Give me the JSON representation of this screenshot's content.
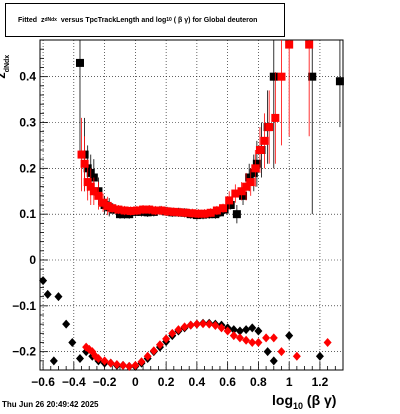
{
  "title": {
    "prefix": "Fitted",
    "z_base": "z",
    "z_sub": "dNdx",
    "middle": "versus TpcTrackLength and log",
    "log_sub": "10",
    "suffix": "( β γ) for Global deuteron"
  },
  "footer_text": "Thu Jun 26 20:49:42 2025",
  "axes": {
    "xlabel_base": "log",
    "xlabel_sub": "10",
    "xlabel_suffix": "(β γ)",
    "ylabel_base": "z",
    "ylabel_sub": "dNdx"
  },
  "colors": {
    "series1": "#000000",
    "series2": "#ff0000",
    "grid": "#000000",
    "background": "#ffffff"
  },
  "chart_data": {
    "type": "scatter",
    "xlim": [
      -0.62,
      1.35
    ],
    "ylim": [
      -0.24,
      0.48
    ],
    "grid": true,
    "x_ticks": [
      -0.6,
      -0.4,
      -0.2,
      0,
      0.2,
      0.4,
      0.6,
      0.8,
      1,
      1.2
    ],
    "x_tick_labels": [
      "−0.6",
      "−0.4",
      "−0.2",
      "0",
      "0.2",
      "0.4",
      "0.6",
      "0.8",
      "1",
      "1.2"
    ],
    "y_ticks": [
      -0.2,
      -0.1,
      0,
      0.1,
      0.2,
      0.3,
      0.4
    ],
    "y_tick_labels": [
      "−0.2",
      "−0.1",
      "0",
      "0.1",
      "0.2",
      "0.3",
      "0.4"
    ],
    "series": [
      {
        "marker": "square",
        "color": "#000000",
        "points": [
          [
            -0.36,
            0.43
          ],
          [
            -0.33,
            0.23
          ],
          [
            -0.31,
            0.2
          ],
          [
            -0.29,
            0.19
          ],
          [
            -0.27,
            0.18
          ],
          [
            -0.24,
            0.15
          ],
          [
            -0.2,
            0.12
          ],
          [
            -0.17,
            0.115
          ],
          [
            -0.14,
            0.11
          ],
          [
            -0.1,
            0.1
          ],
          [
            -0.07,
            0.1
          ],
          [
            -0.04,
            0.1
          ],
          [
            0.0,
            0.105
          ],
          [
            0.04,
            0.105
          ],
          [
            0.08,
            0.104
          ],
          [
            0.12,
            0.105
          ],
          [
            0.16,
            0.108
          ],
          [
            0.2,
            0.106
          ],
          [
            0.24,
            0.104
          ],
          [
            0.28,
            0.104
          ],
          [
            0.32,
            0.103
          ],
          [
            0.36,
            0.1
          ],
          [
            0.4,
            0.098
          ],
          [
            0.44,
            0.099
          ],
          [
            0.48,
            0.1
          ],
          [
            0.52,
            0.1
          ],
          [
            0.55,
            0.104
          ],
          [
            0.58,
            0.11
          ],
          [
            0.62,
            0.12
          ],
          [
            0.66,
            0.1
          ],
          [
            0.7,
            0.14
          ],
          [
            0.74,
            0.18
          ],
          [
            0.77,
            0.19
          ],
          [
            0.79,
            0.21
          ],
          [
            0.82,
            0.24
          ],
          [
            0.86,
            0.29
          ],
          [
            0.9,
            0.4
          ],
          [
            1.15,
            0.4
          ],
          [
            1.33,
            0.39
          ]
        ],
        "yerr": [
          0.2,
          0.08,
          0.05,
          0.04,
          0.04,
          0.03,
          0.02,
          0.02,
          0.01,
          0.01,
          0.01,
          0.01,
          0.01,
          0.01,
          0.01,
          0.01,
          0.01,
          0.01,
          0.01,
          0.01,
          0.01,
          0.01,
          0.01,
          0.01,
          0.01,
          0.01,
          0.01,
          0.01,
          0.01,
          0.02,
          0.02,
          0.03,
          0.04,
          0.05,
          0.06,
          0.08,
          0.2,
          0.3,
          0.1
        ]
      },
      {
        "marker": "square",
        "color": "#ff0000",
        "points": [
          [
            -0.35,
            0.23
          ],
          [
            -0.33,
            0.21
          ],
          [
            -0.31,
            0.17
          ],
          [
            -0.29,
            0.16
          ],
          [
            -0.27,
            0.15
          ],
          [
            -0.24,
            0.14
          ],
          [
            -0.21,
            0.125
          ],
          [
            -0.18,
            0.118
          ],
          [
            -0.15,
            0.113
          ],
          [
            -0.11,
            0.11
          ],
          [
            -0.07,
            0.108
          ],
          [
            -0.03,
            0.107
          ],
          [
            0.01,
            0.108
          ],
          [
            0.05,
            0.11
          ],
          [
            0.09,
            0.11
          ],
          [
            0.13,
            0.108
          ],
          [
            0.17,
            0.108
          ],
          [
            0.21,
            0.106
          ],
          [
            0.25,
            0.105
          ],
          [
            0.29,
            0.104
          ],
          [
            0.33,
            0.103
          ],
          [
            0.37,
            0.102
          ],
          [
            0.41,
            0.101
          ],
          [
            0.45,
            0.101
          ],
          [
            0.49,
            0.103
          ],
          [
            0.53,
            0.108
          ],
          [
            0.57,
            0.113
          ],
          [
            0.61,
            0.13
          ],
          [
            0.65,
            0.145
          ],
          [
            0.69,
            0.15
          ],
          [
            0.72,
            0.16
          ],
          [
            0.75,
            0.17
          ],
          [
            0.78,
            0.2
          ],
          [
            0.81,
            0.24
          ],
          [
            0.84,
            0.26
          ],
          [
            0.87,
            0.29
          ],
          [
            0.91,
            0.31
          ],
          [
            0.95,
            0.4
          ],
          [
            1.0,
            0.47
          ],
          [
            1.13,
            0.47
          ]
        ],
        "yerr": [
          0.08,
          0.06,
          0.04,
          0.04,
          0.03,
          0.03,
          0.02,
          0.02,
          0.01,
          0.01,
          0.01,
          0.01,
          0.01,
          0.01,
          0.01,
          0.01,
          0.01,
          0.01,
          0.01,
          0.01,
          0.01,
          0.01,
          0.01,
          0.01,
          0.01,
          0.01,
          0.01,
          0.02,
          0.02,
          0.02,
          0.03,
          0.03,
          0.04,
          0.05,
          0.06,
          0.08,
          0.1,
          0.15,
          0.2,
          0.2
        ]
      },
      {
        "marker": "diamond",
        "color": "#000000",
        "points": [
          [
            -0.6,
            -0.045
          ],
          [
            -0.57,
            -0.075
          ],
          [
            -0.53,
            -0.22
          ],
          [
            -0.5,
            -0.08
          ],
          [
            -0.45,
            -0.14
          ],
          [
            -0.41,
            -0.18
          ],
          [
            -0.36,
            -0.215
          ],
          [
            -0.32,
            -0.2
          ],
          [
            -0.28,
            -0.21
          ],
          [
            -0.24,
            -0.22
          ],
          [
            -0.2,
            -0.225
          ],
          [
            -0.16,
            -0.225
          ],
          [
            -0.12,
            -0.23
          ],
          [
            -0.08,
            -0.23
          ],
          [
            -0.04,
            -0.232
          ],
          [
            0.0,
            -0.232
          ],
          [
            0.04,
            -0.225
          ],
          [
            0.08,
            -0.215
          ],
          [
            0.12,
            -0.2
          ],
          [
            0.16,
            -0.19
          ],
          [
            0.2,
            -0.178
          ],
          [
            0.24,
            -0.165
          ],
          [
            0.28,
            -0.155
          ],
          [
            0.32,
            -0.148
          ],
          [
            0.36,
            -0.142
          ],
          [
            0.4,
            -0.14
          ],
          [
            0.44,
            -0.138
          ],
          [
            0.48,
            -0.138
          ],
          [
            0.52,
            -0.14
          ],
          [
            0.56,
            -0.142
          ],
          [
            0.6,
            -0.148
          ],
          [
            0.64,
            -0.152
          ],
          [
            0.68,
            -0.155
          ],
          [
            0.72,
            -0.152
          ],
          [
            0.76,
            -0.148
          ],
          [
            0.8,
            -0.155
          ],
          [
            0.86,
            -0.2
          ],
          [
            0.9,
            -0.22
          ],
          [
            1.0,
            -0.165
          ],
          [
            1.2,
            -0.21
          ]
        ]
      },
      {
        "marker": "diamond",
        "color": "#ff0000",
        "points": [
          [
            -0.32,
            -0.19
          ],
          [
            -0.3,
            -0.195
          ],
          [
            -0.28,
            -0.2
          ],
          [
            -0.26,
            -0.21
          ],
          [
            -0.24,
            -0.215
          ],
          [
            -0.2,
            -0.22
          ],
          [
            -0.16,
            -0.225
          ],
          [
            -0.12,
            -0.228
          ],
          [
            -0.08,
            -0.23
          ],
          [
            -0.04,
            -0.232
          ],
          [
            0.0,
            -0.23
          ],
          [
            0.04,
            -0.222
          ],
          [
            0.08,
            -0.21
          ],
          [
            0.12,
            -0.198
          ],
          [
            0.16,
            -0.185
          ],
          [
            0.2,
            -0.172
          ],
          [
            0.24,
            -0.16
          ],
          [
            0.28,
            -0.152
          ],
          [
            0.32,
            -0.146
          ],
          [
            0.36,
            -0.142
          ],
          [
            0.4,
            -0.14
          ],
          [
            0.44,
            -0.139
          ],
          [
            0.48,
            -0.14
          ],
          [
            0.52,
            -0.143
          ],
          [
            0.56,
            -0.148
          ],
          [
            0.6,
            -0.155
          ],
          [
            0.64,
            -0.165
          ],
          [
            0.68,
            -0.17
          ],
          [
            0.72,
            -0.175
          ],
          [
            0.76,
            -0.18
          ],
          [
            0.8,
            -0.18
          ],
          [
            0.85,
            -0.17
          ],
          [
            0.9,
            -0.17
          ],
          [
            0.95,
            -0.2
          ],
          [
            1.05,
            -0.21
          ],
          [
            1.25,
            -0.18
          ]
        ]
      }
    ]
  }
}
